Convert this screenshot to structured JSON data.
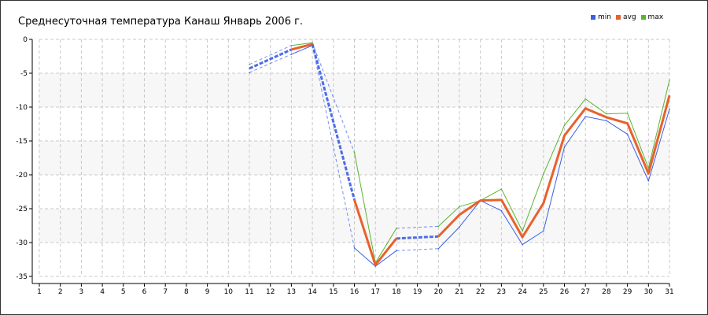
{
  "chart_data": {
    "type": "line",
    "title": "Среднесуточная температура Канаш  Январь 2006 г.",
    "x": [
      1,
      2,
      3,
      4,
      5,
      6,
      7,
      8,
      9,
      10,
      11,
      12,
      13,
      14,
      15,
      16,
      17,
      18,
      19,
      20,
      21,
      22,
      23,
      24,
      25,
      26,
      27,
      28,
      29,
      30,
      31
    ],
    "ylim": [
      -35,
      0
    ],
    "yticks": [
      0,
      -5,
      -10,
      -15,
      -20,
      -25,
      -30,
      -35
    ],
    "grid": true,
    "legend": "top-right",
    "series": [
      {
        "name": "min",
        "color": "#3b5ee8",
        "values": [
          null,
          null,
          null,
          null,
          null,
          null,
          null,
          null,
          null,
          null,
          -4.9,
          null,
          -2.2,
          -0.9,
          null,
          -30.8,
          -33.5,
          -31.2,
          null,
          -30.9,
          -27.7,
          -23.8,
          -25.3,
          -30.3,
          -28.3,
          -15.9,
          -11.4,
          -12.0,
          -14.0,
          -20.9,
          -10.3
        ]
      },
      {
        "name": "avg",
        "color": "#e8612c",
        "values": [
          null,
          null,
          null,
          null,
          null,
          null,
          null,
          null,
          null,
          null,
          -4.3,
          null,
          -1.5,
          -0.7,
          null,
          -23.7,
          -33.3,
          -29.4,
          null,
          -29.1,
          -25.9,
          -23.8,
          -23.7,
          -29.2,
          -24.2,
          -14.2,
          -10.2,
          -11.5,
          -12.4,
          -19.8,
          -8.3
        ]
      },
      {
        "name": "max",
        "color": "#5ab432",
        "values": [
          null,
          null,
          null,
          null,
          null,
          null,
          null,
          null,
          null,
          null,
          -3.7,
          null,
          -0.9,
          -0.5,
          null,
          -16.7,
          -33.0,
          -27.9,
          null,
          -27.6,
          -24.7,
          -23.8,
          -22.1,
          -28.3,
          -19.9,
          -12.7,
          -8.8,
          -11.0,
          -10.9,
          -19.0,
          -6.0
        ]
      }
    ],
    "gap_color": "#3b5ee8"
  }
}
